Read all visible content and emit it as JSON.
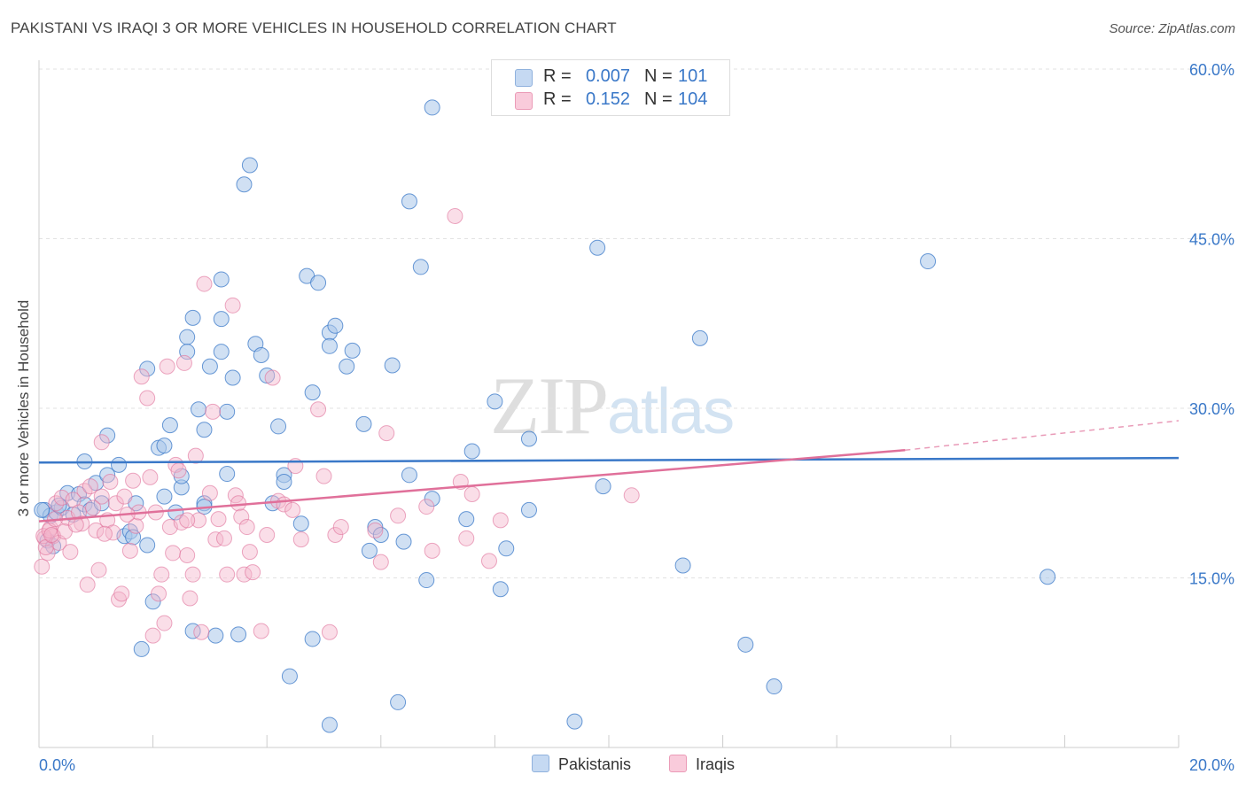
{
  "title": "PAKISTANI VS IRAQI 3 OR MORE VEHICLES IN HOUSEHOLD CORRELATION CHART",
  "source": "Source: ZipAtlas.com",
  "watermark": {
    "zip": "ZIP",
    "atlas": "atlas"
  },
  "legend": {
    "r_label": "R =",
    "n_label": "N =",
    "rows": [
      {
        "name": "Pakistanis",
        "r": "0.007",
        "n": "101",
        "color": "#a9c6ea"
      },
      {
        "name": "Iraqis",
        "r": "0.152",
        "n": "104",
        "color": "#f5b6cb"
      }
    ]
  },
  "chart_data": {
    "type": "scatter",
    "title": "PAKISTANI VS IRAQI 3 OR MORE VEHICLES IN HOUSEHOLD CORRELATION CHART",
    "xlabel": "",
    "ylabel": "3 or more Vehicles in Household",
    "xlim": [
      0,
      20
    ],
    "ylim": [
      0,
      60
    ],
    "x_tick_labels": [
      "0.0%",
      "20.0%"
    ],
    "y_ticks": [
      15,
      30,
      45,
      60
    ],
    "y_tick_labels": [
      "15.0%",
      "30.0%",
      "45.0%",
      "60.0%"
    ],
    "grid": true,
    "colors": {
      "pakistanis": "#3a78c8",
      "pakistanis_fill": "#a9c6ea",
      "iraqis": "#e0709a",
      "iraqis_fill": "#f5b6cb"
    },
    "series": [
      {
        "name": "Pakistanis",
        "trend": {
          "x0": 0,
          "y0": 25.2,
          "x1": 20,
          "y1": 25.6,
          "dashed_from": null
        },
        "points": [
          [
            0.1,
            21.0
          ],
          [
            0.2,
            20.5
          ],
          [
            0.3,
            20.8
          ],
          [
            0.4,
            21.2
          ],
          [
            0.5,
            22.5
          ],
          [
            0.6,
            20.6
          ],
          [
            0.7,
            22.4
          ],
          [
            0.8,
            21.5
          ],
          [
            0.8,
            25.3
          ],
          [
            0.9,
            21.0
          ],
          [
            1.0,
            23.4
          ],
          [
            1.1,
            21.6
          ],
          [
            1.2,
            27.6
          ],
          [
            1.2,
            24.1
          ],
          [
            1.4,
            25.0
          ],
          [
            1.5,
            18.7
          ],
          [
            1.6,
            19.1
          ],
          [
            1.7,
            21.6
          ],
          [
            1.8,
            8.7
          ],
          [
            1.9,
            17.9
          ],
          [
            1.9,
            33.5
          ],
          [
            2.0,
            12.9
          ],
          [
            2.1,
            26.5
          ],
          [
            2.2,
            26.7
          ],
          [
            2.2,
            22.2
          ],
          [
            2.3,
            28.5
          ],
          [
            2.4,
            20.8
          ],
          [
            2.5,
            23.0
          ],
          [
            2.5,
            24.0
          ],
          [
            2.6,
            36.3
          ],
          [
            2.6,
            35.0
          ],
          [
            2.7,
            38.0
          ],
          [
            2.7,
            10.3
          ],
          [
            2.8,
            29.9
          ],
          [
            2.9,
            28.1
          ],
          [
            2.9,
            21.6
          ],
          [
            2.9,
            21.3
          ],
          [
            3.0,
            33.7
          ],
          [
            3.1,
            9.9
          ],
          [
            3.2,
            41.4
          ],
          [
            3.2,
            35.0
          ],
          [
            3.2,
            37.9
          ],
          [
            3.3,
            29.7
          ],
          [
            3.3,
            24.2
          ],
          [
            3.4,
            32.7
          ],
          [
            3.5,
            10.0
          ],
          [
            3.6,
            49.8
          ],
          [
            3.7,
            51.5
          ],
          [
            3.8,
            35.7
          ],
          [
            3.9,
            34.7
          ],
          [
            4.0,
            32.9
          ],
          [
            4.1,
            21.6
          ],
          [
            4.2,
            28.4
          ],
          [
            4.3,
            24.1
          ],
          [
            4.3,
            23.5
          ],
          [
            4.4,
            6.3
          ],
          [
            4.6,
            19.8
          ],
          [
            4.7,
            41.7
          ],
          [
            4.8,
            31.4
          ],
          [
            4.8,
            9.6
          ],
          [
            4.9,
            41.1
          ],
          [
            5.1,
            36.7
          ],
          [
            5.1,
            35.5
          ],
          [
            5.2,
            37.3
          ],
          [
            5.4,
            33.7
          ],
          [
            5.5,
            35.1
          ],
          [
            5.1,
            2.0
          ],
          [
            5.7,
            28.6
          ],
          [
            5.8,
            17.4
          ],
          [
            5.9,
            19.5
          ],
          [
            6.0,
            18.8
          ],
          [
            6.2,
            33.8
          ],
          [
            6.3,
            4.0
          ],
          [
            6.4,
            18.2
          ],
          [
            6.5,
            48.3
          ],
          [
            6.5,
            24.1
          ],
          [
            6.7,
            42.5
          ],
          [
            6.8,
            14.8
          ],
          [
            6.9,
            22.0
          ],
          [
            6.9,
            56.6
          ],
          [
            7.5,
            20.2
          ],
          [
            7.6,
            26.2
          ],
          [
            8.0,
            30.6
          ],
          [
            8.1,
            14.0
          ],
          [
            8.2,
            17.6
          ],
          [
            8.6,
            27.3
          ],
          [
            8.6,
            21.0
          ],
          [
            9.4,
            2.3
          ],
          [
            9.8,
            44.2
          ],
          [
            9.9,
            23.1
          ],
          [
            11.3,
            16.1
          ],
          [
            11.6,
            36.2
          ],
          [
            12.4,
            9.1
          ],
          [
            12.9,
            5.4
          ],
          [
            15.6,
            43.0
          ],
          [
            17.7,
            15.1
          ],
          [
            0.05,
            21.0
          ],
          [
            0.15,
            18.3
          ],
          [
            0.25,
            17.8
          ],
          [
            0.35,
            21.4
          ],
          [
            1.65,
            18.6
          ]
        ]
      },
      {
        "name": "Iraqis",
        "trend": {
          "x0": 0,
          "y0": 20.0,
          "x1": 15.2,
          "y1": 26.3,
          "dashed_from": 15.2,
          "dashed_to": 20,
          "dashed_y1": 28.9
        },
        "points": [
          [
            0.05,
            16.0
          ],
          [
            0.1,
            18.5
          ],
          [
            0.15,
            17.2
          ],
          [
            0.2,
            19.4
          ],
          [
            0.25,
            18.7
          ],
          [
            0.3,
            21.6
          ],
          [
            0.35,
            18.1
          ],
          [
            0.4,
            22.1
          ],
          [
            0.5,
            20.3
          ],
          [
            0.55,
            17.3
          ],
          [
            0.6,
            21.9
          ],
          [
            0.7,
            20.8
          ],
          [
            0.75,
            19.8
          ],
          [
            0.8,
            22.7
          ],
          [
            0.85,
            14.4
          ],
          [
            0.9,
            23.1
          ],
          [
            1.0,
            19.2
          ],
          [
            1.05,
            15.7
          ],
          [
            1.1,
            22.2
          ],
          [
            1.1,
            27.0
          ],
          [
            1.2,
            20.1
          ],
          [
            1.25,
            23.5
          ],
          [
            1.3,
            19.0
          ],
          [
            1.35,
            21.6
          ],
          [
            1.4,
            13.1
          ],
          [
            1.45,
            13.6
          ],
          [
            1.5,
            22.2
          ],
          [
            1.6,
            17.4
          ],
          [
            1.65,
            23.6
          ],
          [
            1.7,
            19.6
          ],
          [
            1.75,
            20.8
          ],
          [
            1.8,
            32.8
          ],
          [
            1.9,
            30.9
          ],
          [
            1.95,
            23.9
          ],
          [
            2.0,
            9.9
          ],
          [
            2.05,
            20.8
          ],
          [
            2.1,
            13.6
          ],
          [
            2.15,
            15.3
          ],
          [
            2.2,
            11.0
          ],
          [
            2.25,
            33.7
          ],
          [
            2.3,
            19.5
          ],
          [
            2.35,
            17.2
          ],
          [
            2.4,
            25.0
          ],
          [
            2.45,
            24.5
          ],
          [
            2.5,
            19.9
          ],
          [
            2.55,
            34.0
          ],
          [
            2.6,
            17.0
          ],
          [
            2.65,
            13.2
          ],
          [
            2.7,
            15.3
          ],
          [
            2.75,
            25.8
          ],
          [
            2.8,
            20.1
          ],
          [
            2.85,
            10.2
          ],
          [
            2.9,
            41.0
          ],
          [
            3.0,
            22.5
          ],
          [
            3.05,
            29.7
          ],
          [
            3.1,
            18.4
          ],
          [
            3.15,
            20.2
          ],
          [
            3.25,
            18.5
          ],
          [
            3.4,
            39.1
          ],
          [
            3.45,
            22.3
          ],
          [
            3.5,
            21.6
          ],
          [
            3.55,
            20.4
          ],
          [
            3.6,
            15.3
          ],
          [
            3.65,
            19.5
          ],
          [
            3.7,
            17.3
          ],
          [
            3.75,
            15.5
          ],
          [
            3.9,
            10.3
          ],
          [
            4.0,
            18.8
          ],
          [
            4.1,
            32.7
          ],
          [
            4.2,
            21.8
          ],
          [
            4.3,
            21.5
          ],
          [
            4.5,
            24.9
          ],
          [
            4.6,
            18.4
          ],
          [
            4.9,
            29.9
          ],
          [
            5.0,
            24.0
          ],
          [
            5.1,
            10.2
          ],
          [
            5.2,
            18.8
          ],
          [
            5.3,
            19.5
          ],
          [
            5.9,
            19.2
          ],
          [
            6.0,
            16.4
          ],
          [
            6.1,
            27.8
          ],
          [
            6.3,
            20.5
          ],
          [
            6.8,
            21.3
          ],
          [
            6.9,
            17.4
          ],
          [
            7.3,
            47.0
          ],
          [
            7.4,
            23.5
          ],
          [
            7.5,
            18.5
          ],
          [
            7.6,
            22.4
          ],
          [
            7.9,
            16.5
          ],
          [
            8.1,
            20.1
          ],
          [
            0.08,
            18.7
          ],
          [
            0.12,
            17.7
          ],
          [
            0.18,
            19.2
          ],
          [
            0.22,
            18.8
          ],
          [
            0.28,
            20.2
          ],
          [
            0.45,
            19.1
          ],
          [
            0.65,
            19.7
          ],
          [
            0.95,
            21.2
          ],
          [
            1.15,
            18.9
          ],
          [
            1.55,
            20.6
          ],
          [
            2.6,
            20.1
          ],
          [
            3.3,
            15.3
          ],
          [
            4.45,
            21.0
          ],
          [
            10.4,
            22.3
          ]
        ]
      }
    ]
  }
}
